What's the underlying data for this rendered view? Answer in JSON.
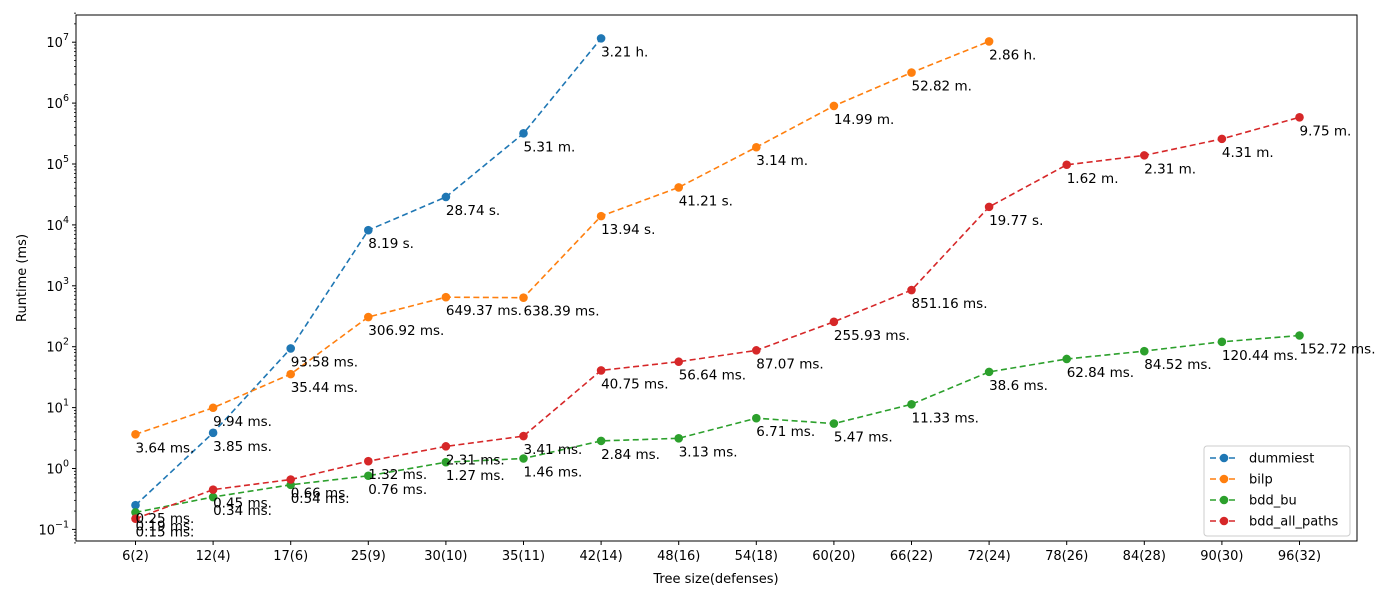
{
  "chart_data": {
    "type": "line",
    "xlabel": "Tree size(defenses)",
    "ylabel": "Runtime (ms)",
    "yscale": "log",
    "ylim": [
      0.06,
      30000000
    ],
    "grid": false,
    "legend_position": "bottom-right",
    "categories": [
      "6(2)",
      "12(4)",
      "17(6)",
      "25(9)",
      "30(10)",
      "35(11)",
      "42(14)",
      "48(16)",
      "54(18)",
      "60(20)",
      "66(22)",
      "72(24)",
      "78(26)",
      "84(28)",
      "90(30)",
      "96(32)"
    ],
    "y_tick_labels": [
      "10",
      "10",
      "10",
      "10",
      "10",
      "10",
      "10",
      "10",
      "10"
    ],
    "y_tick_exponents": [
      "−1",
      "0",
      "1",
      "2",
      "3",
      "4",
      "5",
      "6",
      "7"
    ],
    "y_tick_values": [
      0.1,
      1,
      10,
      100,
      1000,
      10000,
      100000,
      1000000,
      10000000
    ],
    "series": [
      {
        "name": "dummiest",
        "color": "#1f77b4",
        "values": [
          0.25,
          3.85,
          93.58,
          8190,
          28740,
          318600,
          11556000,
          null,
          null,
          null,
          null,
          null,
          null,
          null,
          null,
          null
        ],
        "labels": [
          "0.25 ms.",
          "3.85 ms.",
          "93.58 ms.",
          "8.19 s.",
          "28.74 s.",
          "5.31 m.",
          "3.21 h.",
          "",
          "",
          "",
          "",
          "",
          "",
          "",
          "",
          ""
        ]
      },
      {
        "name": "bilp",
        "color": "#ff7f0e",
        "values": [
          3.64,
          9.94,
          35.44,
          306.92,
          649.37,
          638.39,
          13940,
          41210,
          188400,
          899400,
          3169200,
          10296000,
          null,
          null,
          null,
          null
        ],
        "labels": [
          "3.64 ms.",
          "9.94 ms.",
          "35.44 ms.",
          "306.92 ms.",
          "649.37 ms.",
          "638.39 ms.",
          "13.94 s.",
          "41.21 s.",
          "3.14 m.",
          "14.99 m.",
          "52.82 m.",
          "2.86 h.",
          "",
          "",
          "",
          ""
        ]
      },
      {
        "name": "bdd_bu",
        "color": "#2ca02c",
        "values": [
          0.19,
          0.34,
          0.54,
          0.76,
          1.27,
          1.46,
          2.84,
          3.13,
          6.71,
          5.47,
          11.33,
          38.6,
          62.84,
          84.52,
          120.44,
          152.72
        ],
        "labels": [
          "0.19 ms.",
          "0.34 ms.",
          "0.54 ms.",
          "0.76 ms.",
          "1.27 ms.",
          "1.46 ms.",
          "2.84 ms.",
          "3.13 ms.",
          "6.71 ms.",
          "5.47 ms.",
          "11.33 ms.",
          "38.6 ms.",
          "62.84 ms.",
          "84.52 ms.",
          "120.44 ms.",
          "152.72 ms."
        ]
      },
      {
        "name": "bdd_all_paths",
        "color": "#d62728",
        "values": [
          0.15,
          0.45,
          0.66,
          1.32,
          2.31,
          3.41,
          40.75,
          56.64,
          87.07,
          255.93,
          851.16,
          19770,
          97200,
          138600,
          258600,
          585000
        ],
        "labels": [
          "0.15 ms.",
          "0.45 ms.",
          "0.66 ms.",
          "1.32 ms.",
          "2.31 ms.",
          "3.41 ms.",
          "40.75 ms.",
          "56.64 ms.",
          "87.07 ms.",
          "255.93 ms.",
          "851.16 ms.",
          "19.77 s.",
          "1.62 m.",
          "2.31 m.",
          "4.31 m.",
          "9.75 m."
        ]
      }
    ]
  }
}
